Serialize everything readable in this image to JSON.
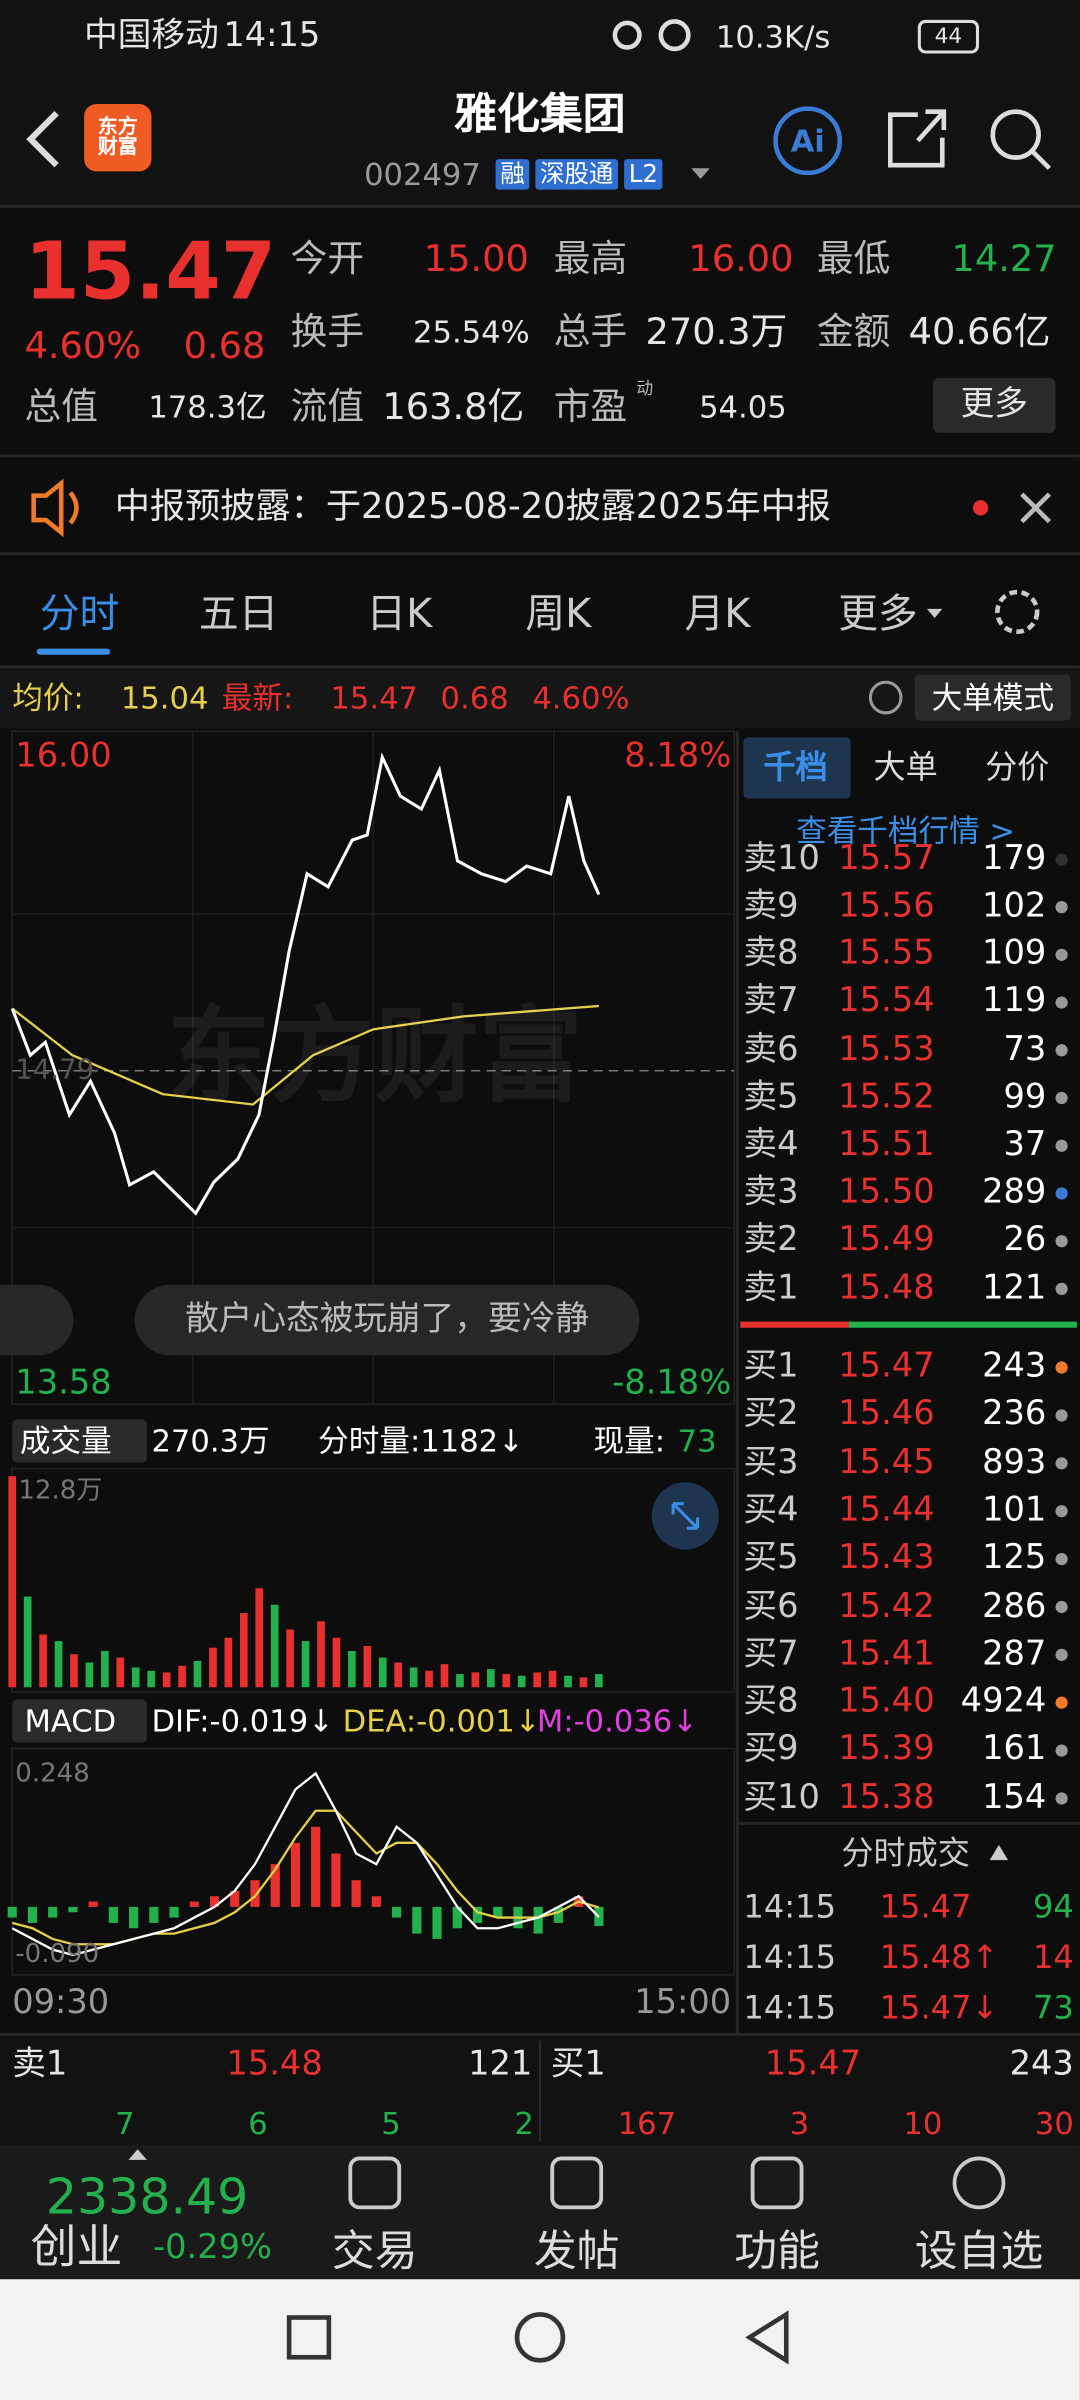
{
  "status": {
    "carrier": "中国移动",
    "time": "14:15",
    "speed": "10.3K/s",
    "battery": "44"
  },
  "header": {
    "logo": "东方财富",
    "title": "雅化集团",
    "code": "002497",
    "tags": [
      "融",
      "深股通",
      "L2"
    ],
    "ai": "Ai"
  },
  "quote": {
    "price": "15.47",
    "pct": "4.60%",
    "change": "0.68",
    "more": "更多",
    "pe_note": "动",
    "rows": [
      [
        {
          "label": "今开",
          "value": "15.00",
          "color": "#e8312f"
        },
        {
          "label": "最高",
          "value": "16.00",
          "color": "#e8312f"
        },
        {
          "label": "最低",
          "value": "14.27",
          "color": "#22b14c"
        }
      ],
      [
        {
          "label": "换手",
          "value": "25.54%",
          "color": "#e6e6e6"
        },
        {
          "label": "总手",
          "value": "270.3万",
          "color": "#e6e6e6"
        },
        {
          "label": "金额",
          "value": "40.66亿",
          "color": "#e6e6e6"
        }
      ],
      [
        {
          "label": "总值",
          "value": "178.3亿",
          "color": "#e6e6e6"
        },
        {
          "label": "流值",
          "value": "163.8亿",
          "color": "#e6e6e6"
        },
        {
          "label": "市盈",
          "value": "54.05",
          "color": "#e6e6e6"
        }
      ]
    ]
  },
  "notice": "中报预披露：于2025-08-20披露2025年中报",
  "tabs": [
    "分时",
    "五日",
    "日K",
    "周K",
    "月K",
    "更多"
  ],
  "summary": {
    "avg_label": "均价:",
    "avg": "15.04",
    "latest_label": "最新:",
    "latest": "15.47",
    "change": "0.68",
    "pct": "4.60%",
    "mode": "大单模式"
  },
  "intraday": {
    "top": {
      "value": 16.0,
      "label": "16.00"
    },
    "top_pct": "8.18%",
    "bottom": {
      "value": 13.58,
      "label": "13.58"
    },
    "bottom_pct": "-8.18%",
    "mid": {
      "value": 14.79,
      "label": "14.79"
    },
    "watermark": "东方财富",
    "comment": "散户心态被玩崩了，要冷静",
    "start": "09:30",
    "end": "15:00",
    "xlim": [
      0,
      240
    ],
    "x": [
      0,
      6,
      11,
      19,
      26,
      34,
      39,
      47,
      54,
      61,
      67,
      75,
      82,
      87,
      92,
      98,
      105,
      113,
      118,
      123,
      129,
      136,
      142,
      148,
      156,
      164,
      171,
      179,
      185,
      190,
      195
    ],
    "price": [
      15.03,
      14.85,
      14.9,
      14.62,
      14.75,
      14.55,
      14.35,
      14.4,
      14.32,
      14.24,
      14.36,
      14.45,
      14.62,
      14.92,
      15.25,
      15.55,
      15.5,
      15.68,
      15.7,
      16.0,
      15.85,
      15.8,
      15.95,
      15.6,
      15.55,
      15.52,
      15.58,
      15.55,
      15.85,
      15.6,
      15.47
    ],
    "avg_x": [
      0,
      20,
      50,
      80,
      100,
      120,
      150,
      195
    ],
    "avg": [
      15.03,
      14.85,
      14.7,
      14.66,
      14.85,
      14.95,
      15.0,
      15.04
    ]
  },
  "volume": {
    "label": "成交量",
    "total": "270.3万",
    "fen": "分时量:1182↓",
    "now_label": "现量:",
    "now": "73",
    "max": {
      "value": 12.8,
      "label": "12.8万"
    },
    "values": [
      12.8,
      5.5,
      3.2,
      2.8,
      2.0,
      1.5,
      2.2,
      1.8,
      1.2,
      1.0,
      0.9,
      1.3,
      1.6,
      2.4,
      3.0,
      4.5,
      6.0,
      5.0,
      3.5,
      2.8,
      4.0,
      3.0,
      2.2,
      2.5,
      1.8,
      1.5,
      1.2,
      1.0,
      1.4,
      0.8,
      0.9,
      1.1,
      0.8,
      0.7,
      0.9,
      1.0,
      0.7,
      0.6,
      0.8
    ],
    "up": [
      true,
      false,
      true,
      false,
      true,
      false,
      false,
      true,
      false,
      false,
      true,
      true,
      false,
      true,
      true,
      true,
      true,
      false,
      true,
      false,
      true,
      true,
      false,
      true,
      false,
      true,
      false,
      true,
      true,
      false,
      true,
      false,
      true,
      false,
      true,
      true,
      false,
      true,
      false
    ]
  },
  "macd": {
    "label": "MACD",
    "dif": "DIF:-0.019↓",
    "dea": "DEA:-0.001↓",
    "m": "M:-0.036↓",
    "top": {
      "value": 0.248,
      "label": "0.248"
    },
    "bottom": {
      "value": -0.09,
      "label": "-0.090"
    },
    "hist": [
      -0.02,
      -0.03,
      -0.02,
      -0.01,
      0.01,
      -0.03,
      -0.04,
      -0.03,
      -0.02,
      0.01,
      0.02,
      0.03,
      0.05,
      0.08,
      0.12,
      0.15,
      0.1,
      0.05,
      0.02,
      -0.02,
      -0.05,
      -0.06,
      -0.04,
      -0.03,
      -0.02,
      -0.04,
      -0.05,
      -0.03,
      0.02,
      -0.036
    ],
    "dif_values": [
      -0.04,
      -0.06,
      -0.08,
      -0.09,
      -0.08,
      -0.07,
      -0.06,
      -0.05,
      -0.04,
      -0.02,
      0.0,
      0.03,
      0.08,
      0.15,
      0.22,
      0.25,
      0.18,
      0.1,
      0.08,
      0.15,
      0.12,
      0.06,
      0.0,
      -0.04,
      -0.04,
      -0.03,
      -0.02,
      0.0,
      0.02,
      -0.019
    ],
    "dea_values": [
      -0.03,
      -0.04,
      -0.06,
      -0.07,
      -0.07,
      -0.07,
      -0.06,
      -0.05,
      -0.05,
      -0.04,
      -0.03,
      -0.01,
      0.02,
      0.07,
      0.13,
      0.18,
      0.18,
      0.14,
      0.1,
      0.12,
      0.12,
      0.08,
      0.03,
      -0.01,
      -0.02,
      -0.02,
      -0.02,
      -0.01,
      0.01,
      -0.001
    ]
  },
  "book": {
    "tabs": [
      "千档",
      "大单",
      "分价"
    ],
    "link": "查看千档行情 >",
    "sells": [
      {
        "label": "卖10",
        "price": "15.57",
        "vol": "179",
        "dot": "#999"
      },
      {
        "label": "卖9",
        "price": "15.56",
        "vol": "102",
        "dot": "#999"
      },
      {
        "label": "卖8",
        "price": "15.55",
        "vol": "109",
        "dot": "#999"
      },
      {
        "label": "卖7",
        "price": "15.54",
        "vol": "119",
        "dot": "#999"
      },
      {
        "label": "卖6",
        "price": "15.53",
        "vol": "73",
        "dot": "#999"
      },
      {
        "label": "卖5",
        "price": "15.52",
        "vol": "99",
        "dot": "#999"
      },
      {
        "label": "卖4",
        "price": "15.51",
        "vol": "37",
        "dot": "#999"
      },
      {
        "label": "卖3",
        "price": "15.50",
        "vol": "289",
        "dot": "#3a7bd5"
      },
      {
        "label": "卖2",
        "price": "15.49",
        "vol": "26",
        "dot": "#999"
      },
      {
        "label": "卖1",
        "price": "15.48",
        "vol": "121",
        "dot": "#999"
      }
    ],
    "buys": [
      {
        "label": "买1",
        "price": "15.47",
        "vol": "243",
        "dot": "#f07a28"
      },
      {
        "label": "买2",
        "price": "15.46",
        "vol": "236",
        "dot": "#999"
      },
      {
        "label": "买3",
        "price": "15.45",
        "vol": "893",
        "dot": "#999"
      },
      {
        "label": "买4",
        "price": "15.44",
        "vol": "101",
        "dot": "#999"
      },
      {
        "label": "买5",
        "price": "15.43",
        "vol": "125",
        "dot": "#999"
      },
      {
        "label": "买6",
        "price": "15.42",
        "vol": "286",
        "dot": "#999"
      },
      {
        "label": "买7",
        "price": "15.41",
        "vol": "287",
        "dot": "#999"
      },
      {
        "label": "买8",
        "price": "15.40",
        "vol": "4924",
        "dot": "#f07a28"
      },
      {
        "label": "买9",
        "price": "15.39",
        "vol": "161",
        "dot": "#999"
      },
      {
        "label": "买10",
        "price": "15.38",
        "vol": "154",
        "dot": "#999"
      }
    ],
    "trades_title": "分时成交",
    "trades": [
      {
        "time": "14:15",
        "price": "15.47",
        "vol": "94",
        "vc": "#22b14c"
      },
      {
        "time": "14:15",
        "price": "15.48↑",
        "vol": "14",
        "vc": "#e8312f"
      },
      {
        "time": "14:15",
        "price": "15.47↓",
        "vol": "73",
        "vc": "#22b14c"
      }
    ]
  },
  "bottom": {
    "sell_label": "卖1",
    "sell_price": "15.48",
    "sell_vol": "121",
    "buy_label": "买1",
    "buy_price": "15.47",
    "buy_vol": "243",
    "sell_row": [
      "7",
      "6",
      "5",
      "2"
    ],
    "buy_row": [
      "167",
      "3",
      "10",
      "30"
    ]
  },
  "nav": {
    "index": "2338.49",
    "index_name": "创业",
    "index_pct": "-0.29%",
    "items": [
      "交易",
      "发帖",
      "功能",
      "设自选"
    ]
  }
}
